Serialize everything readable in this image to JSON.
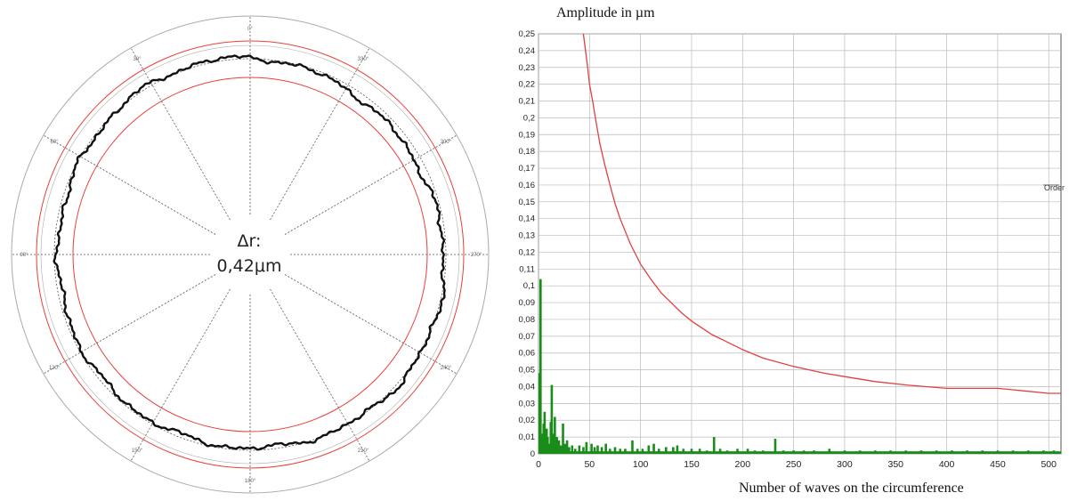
{
  "polar_plot": {
    "center_label": {
      "line1": "Δr:",
      "line2": "0,42μm"
    },
    "angle_labels": [
      "0°",
      "30°",
      "60°",
      "90°",
      "120°",
      "150°",
      "180°",
      "210°",
      "240°",
      "270°",
      "300°",
      "330°"
    ],
    "colors": {
      "profile": "#111111",
      "tolerance": "#e8403a",
      "outer_ring": "#aaaaaa",
      "dashed": "#555555"
    }
  },
  "chart_data": {
    "type": "bar",
    "xlabel": "Number of waves on the circumference",
    "ylabel": "Amplitude in µm",
    "xlim": [
      0,
      512
    ],
    "ylim": [
      0,
      0.25
    ],
    "x_ticks": [
      "0",
      "50",
      "100",
      "150",
      "200",
      "250",
      "300",
      "350",
      "400",
      "450",
      "500"
    ],
    "y_ticks": [
      "0",
      "0,01",
      "0,02",
      "0,03",
      "0,04",
      "0,05",
      "0,06",
      "0,07",
      "0,08",
      "0,09",
      "0,1",
      "0,11",
      "0,12",
      "0,13",
      "0,14",
      "0,15",
      "0,16",
      "0,17",
      "0,18",
      "0,19",
      "0,2",
      "0,21",
      "0,22",
      "0,23",
      "0,24",
      "0,25"
    ],
    "annotation": "Order",
    "series": [
      {
        "color": "#1a8c1a",
        "points": [
          [
            1,
            0.048
          ],
          [
            2,
            0.104
          ],
          [
            3,
            0.012
          ],
          [
            4,
            0.006
          ],
          [
            5,
            0.018
          ],
          [
            6,
            0.025
          ],
          [
            7,
            0.008
          ],
          [
            8,
            0.015
          ],
          [
            9,
            0.01
          ],
          [
            10,
            0.006
          ],
          [
            12,
            0.019
          ],
          [
            13,
            0.041
          ],
          [
            14,
            0.012
          ],
          [
            16,
            0.022
          ],
          [
            18,
            0.01
          ],
          [
            20,
            0.008
          ],
          [
            22,
            0.005
          ],
          [
            24,
            0.018
          ],
          [
            26,
            0.006
          ],
          [
            28,
            0.008
          ],
          [
            30,
            0.004
          ],
          [
            33,
            0.005
          ],
          [
            36,
            0.003
          ],
          [
            40,
            0.005
          ],
          [
            44,
            0.004
          ],
          [
            47,
            0.007
          ],
          [
            52,
            0.006
          ],
          [
            55,
            0.004
          ],
          [
            58,
            0.005
          ],
          [
            62,
            0.004
          ],
          [
            66,
            0.006
          ],
          [
            70,
            0.003
          ],
          [
            75,
            0.004
          ],
          [
            80,
            0.003
          ],
          [
            85,
            0.003
          ],
          [
            92,
            0.008
          ],
          [
            97,
            0.003
          ],
          [
            102,
            0.003
          ],
          [
            108,
            0.005
          ],
          [
            113,
            0.006
          ],
          [
            118,
            0.003
          ],
          [
            125,
            0.004
          ],
          [
            132,
            0.004
          ],
          [
            136,
            0.005
          ],
          [
            142,
            0.003
          ],
          [
            150,
            0.003
          ],
          [
            158,
            0.003
          ],
          [
            165,
            0.002
          ],
          [
            172,
            0.01
          ],
          [
            178,
            0.003
          ],
          [
            185,
            0.002
          ],
          [
            195,
            0.003
          ],
          [
            205,
            0.003
          ],
          [
            212,
            0.002
          ],
          [
            220,
            0.002
          ],
          [
            232,
            0.009
          ],
          [
            240,
            0.002
          ],
          [
            250,
            0.002
          ],
          [
            260,
            0.002
          ],
          [
            270,
            0.002
          ],
          [
            285,
            0.003
          ],
          [
            300,
            0.002
          ],
          [
            315,
            0.002
          ],
          [
            330,
            0.002
          ],
          [
            345,
            0.002
          ],
          [
            360,
            0.002
          ],
          [
            375,
            0.002
          ],
          [
            390,
            0.002
          ],
          [
            405,
            0.002
          ],
          [
            420,
            0.002
          ],
          [
            435,
            0.002
          ],
          [
            450,
            0.002
          ],
          [
            465,
            0.002
          ],
          [
            480,
            0.002
          ],
          [
            495,
            0.002
          ],
          [
            505,
            0.002
          ]
        ]
      },
      {
        "color": "#e04040",
        "points": [
          [
            44,
            0.25
          ],
          [
            48,
            0.231
          ],
          [
            50,
            0.22
          ],
          [
            53,
            0.21
          ],
          [
            56,
            0.199
          ],
          [
            60,
            0.185
          ],
          [
            65,
            0.172
          ],
          [
            70,
            0.16
          ],
          [
            75,
            0.149
          ],
          [
            80,
            0.14
          ],
          [
            90,
            0.125
          ],
          [
            100,
            0.113
          ],
          [
            110,
            0.104
          ],
          [
            120,
            0.096
          ],
          [
            130,
            0.09
          ],
          [
            140,
            0.084
          ],
          [
            150,
            0.079
          ],
          [
            160,
            0.075
          ],
          [
            170,
            0.071
          ],
          [
            180,
            0.068
          ],
          [
            200,
            0.062
          ],
          [
            220,
            0.057
          ],
          [
            250,
            0.052
          ],
          [
            280,
            0.048
          ],
          [
            300,
            0.046
          ],
          [
            330,
            0.043
          ],
          [
            360,
            0.041
          ],
          [
            400,
            0.039
          ],
          [
            450,
            0.039
          ],
          [
            500,
            0.036
          ],
          [
            512,
            0.036
          ]
        ]
      }
    ]
  }
}
